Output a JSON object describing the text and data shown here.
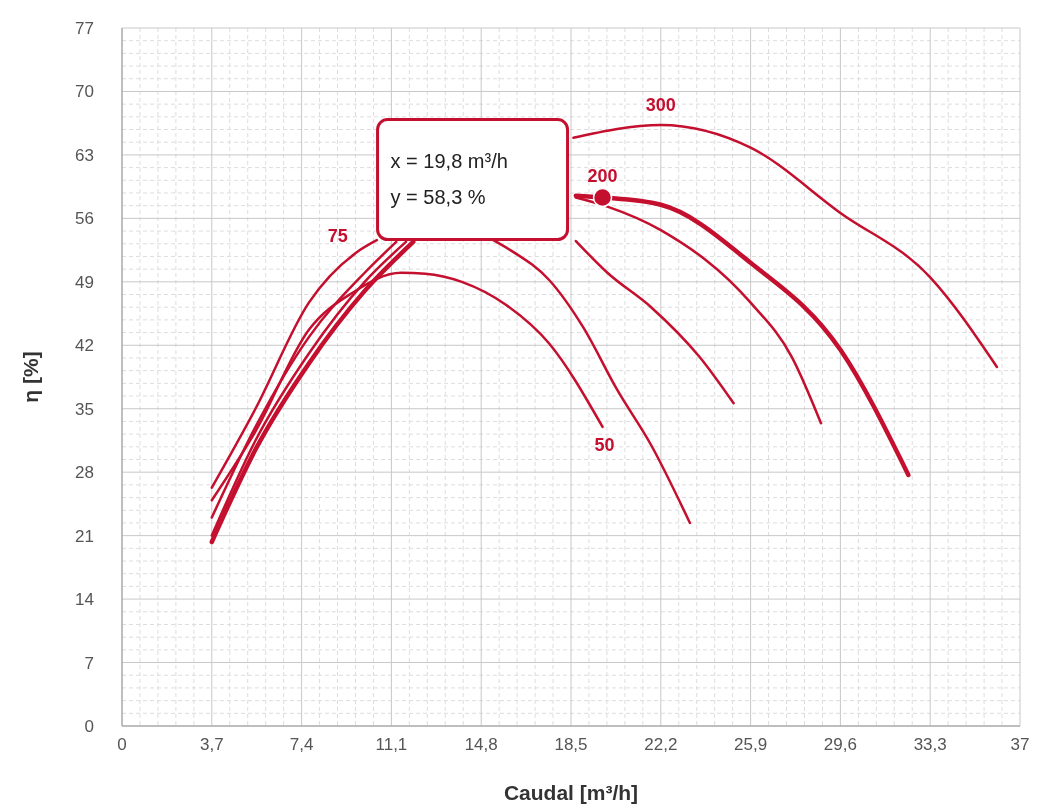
{
  "chart_data": {
    "type": "line",
    "xlabel": "Caudal [m³/h]",
    "ylabel": "η [%]",
    "xlim": [
      0,
      37
    ],
    "ylim": [
      0,
      77
    ],
    "xticks": [
      0,
      {
        "value": 3.7,
        "label": "3,7"
      },
      {
        "value": 7.4,
        "label": "7,4"
      },
      {
        "value": 11.1,
        "label": "11,1"
      },
      {
        "value": 14.8,
        "label": "14,8"
      },
      {
        "value": 18.5,
        "label": "18,5"
      },
      {
        "value": 22.2,
        "label": "22,2"
      },
      {
        "value": 25.9,
        "label": "25,9"
      },
      {
        "value": 29.6,
        "label": "29,6"
      },
      {
        "value": 33.3,
        "label": "33,3"
      },
      37
    ],
    "yticks": [
      0,
      7,
      14,
      21,
      28,
      35,
      42,
      49,
      56,
      63,
      70,
      77
    ],
    "grid": true,
    "marker": "none",
    "line_style": "solid",
    "series": [
      {
        "name": "50",
        "color": "#c40f2f",
        "x": [
          3.7,
          5.5,
          7.7,
          9.5,
          11.5,
          12.5,
          14,
          15.8,
          17.6,
          19.8
        ],
        "values": [
          24.9,
          32.5,
          43.7,
          47.8,
          50,
          49.9,
          49,
          46.5,
          42.2,
          33
        ]
      },
      {
        "name": "75",
        "color": "#c40f2f",
        "x": [
          3.7,
          5.5,
          7.7,
          9.8,
          10.5,
          11.5,
          13,
          14.5,
          15.3,
          16,
          17.6,
          19,
          20.4,
          21.8,
          23.4
        ],
        "values": [
          26.3,
          35,
          46.7,
          52.5,
          53.6,
          null,
          null,
          null,
          53.6,
          52.5,
          49.2,
          44,
          37.1,
          31,
          22.4
        ]
      },
      {
        "color": "#c40f2f",
        "x": [
          3.7,
          5.5,
          7.7,
          10,
          11.3,
          12,
          14,
          16,
          18.7,
          20,
          21.8,
          23.8,
          25.2
        ],
        "values": [
          23,
          33,
          42.9,
          50,
          53.4,
          null,
          null,
          null,
          53.5,
          50,
          46.2,
          40.7,
          35.6
        ]
      },
      {
        "color": "#c40f2f",
        "x": [
          3.7,
          5.5,
          7.7,
          10,
          11.7,
          12.5,
          15,
          17.5,
          18.7,
          20,
          22.2,
          25.9,
          27.6,
          28.8
        ],
        "values": [
          21,
          31.5,
          41.1,
          49,
          53.4,
          null,
          null,
          null,
          58.3,
          57.3,
          54.7,
          46.7,
          40.7,
          33.4
        ]
      },
      {
        "name": "200",
        "color": "#c40f2f",
        "x": [
          3.7,
          5.5,
          7.7,
          10,
          12,
          12.5,
          15,
          17.5,
          18.7,
          19.8,
          22.2,
          25.9,
          29.6,
          32.4
        ],
        "values": [
          20.3,
          30.5,
          40,
          48,
          53.4,
          null,
          null,
          null,
          58.5,
          58.3,
          57.5,
          51.1,
          41.5,
          27.7
        ]
      },
      {
        "name": "300",
        "color": "#c40f2f",
        "x": [
          18.6,
          22.2,
          25.9,
          29.6,
          33.3,
          36.05
        ],
        "values": [
          64.9,
          66.3,
          63.8,
          56.6,
          49.5,
          39.6
        ]
      }
    ],
    "annotations": [
      "x = 19,8 m³/h",
      "y = 58,3 %"
    ]
  }
}
